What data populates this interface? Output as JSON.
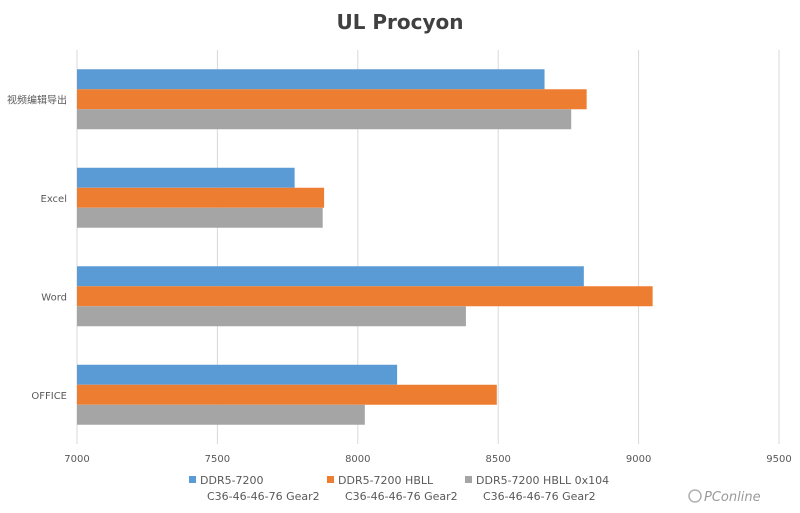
{
  "chart_data": {
    "type": "bar",
    "orientation": "horizontal",
    "title": "UL Procyon",
    "categories": [
      "视频编辑导出",
      "Excel",
      "Word",
      "OFFICE"
    ],
    "xlim": [
      7000,
      9500
    ],
    "xticks": [
      7000,
      7500,
      8000,
      8500,
      9000,
      9500
    ],
    "grid": true,
    "legend_position": "bottom",
    "series": [
      {
        "name_line1": "DDR5-7200",
        "name_line2": "C36-46-46-76 Gear2",
        "color": "#5B9BD5",
        "values": [
          8665,
          7775,
          8805,
          8140
        ]
      },
      {
        "name_line1": "DDR5-7200 HBLL",
        "name_line2": "C36-46-46-76 Gear2",
        "color": "#ED7D31",
        "values": [
          8815,
          7880,
          9050,
          8495
        ]
      },
      {
        "name_line1": "DDR5-7200 HBLL 0x104",
        "name_line2": "C36-46-46-76 Gear2",
        "color": "#A5A5A5",
        "values": [
          8760,
          7875,
          8385,
          8025
        ]
      }
    ]
  },
  "watermark": "PConline"
}
